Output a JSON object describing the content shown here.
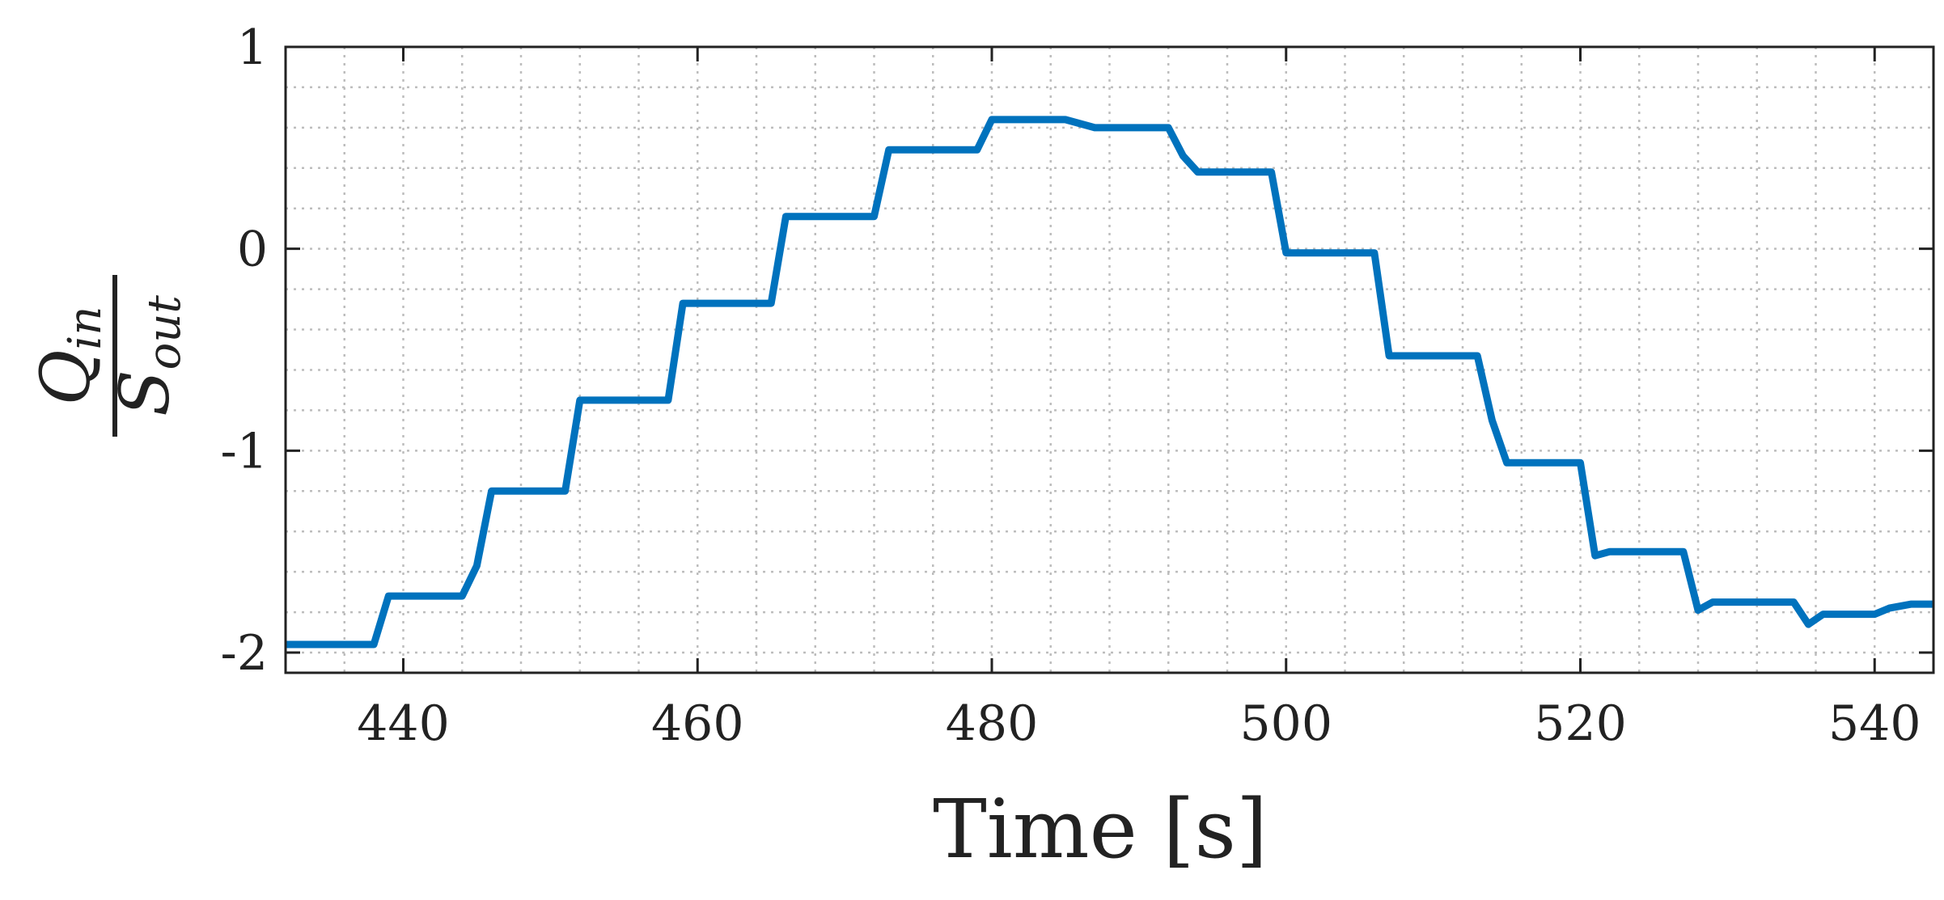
{
  "chart_data": {
    "type": "line",
    "xlabel": "Time [s]",
    "ylabel": {
      "numerator": "Q",
      "numerator_sub": "in",
      "denominator": "S",
      "denominator_sub": "out"
    },
    "xlim": [
      432,
      544
    ],
    "ylim": [
      -2.1,
      1
    ],
    "xticks": [
      440,
      460,
      480,
      500,
      520,
      540
    ],
    "xtick_labels": [
      "440",
      "460",
      "480",
      "500",
      "520",
      "540"
    ],
    "yticks": [
      1,
      0,
      -1,
      -2
    ],
    "ytick_labels": [
      "1",
      "0",
      "-1",
      "-2"
    ],
    "grid": true,
    "minor_grid": true,
    "legend": "none",
    "series": [
      {
        "color": "#0072bd",
        "x": [
          432,
          438,
          439,
          444,
          445,
          446,
          451,
          452,
          458,
          459,
          465,
          466,
          472,
          473,
          479,
          480,
          485,
          487,
          492,
          493,
          494,
          499,
          500,
          506,
          507,
          513,
          514,
          515,
          520,
          521,
          522,
          527,
          528,
          529,
          534.5,
          535.5,
          536.5,
          540,
          541,
          542.5,
          544
        ],
        "y": [
          -1.96,
          -1.96,
          -1.72,
          -1.72,
          -1.57,
          -1.2,
          -1.2,
          -0.75,
          -0.75,
          -0.27,
          -0.27,
          0.16,
          0.16,
          0.49,
          0.49,
          0.64,
          0.64,
          0.6,
          0.6,
          0.46,
          0.38,
          0.38,
          -0.02,
          -0.02,
          -0.53,
          -0.53,
          -0.85,
          -1.06,
          -1.06,
          -1.52,
          -1.5,
          -1.5,
          -1.79,
          -1.75,
          -1.75,
          -1.86,
          -1.81,
          -1.81,
          -1.78,
          -1.76,
          -1.76
        ]
      }
    ]
  }
}
